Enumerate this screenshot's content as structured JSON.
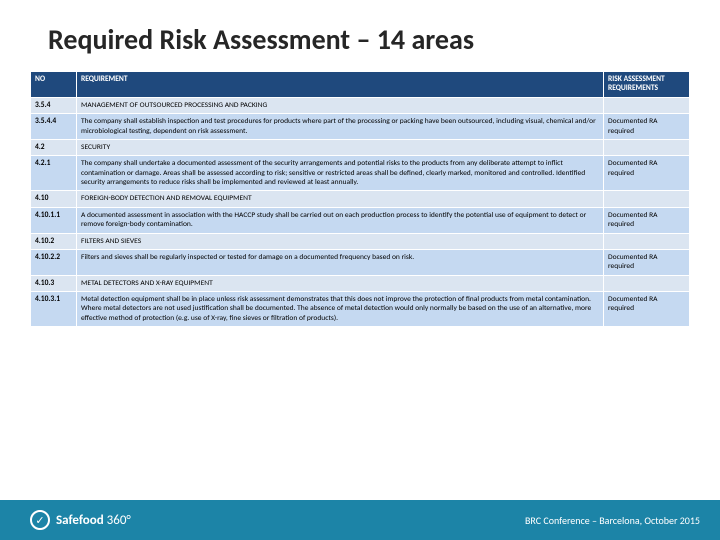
{
  "title": "Required Risk Assessment – 14 areas",
  "table": {
    "headers": {
      "no": "NO",
      "req": "REQUIREMENT",
      "risk": "RISK ASSESSMENT REQUIREMENTS"
    },
    "rows": [
      {
        "no": "3.5.4",
        "req": "MANAGEMENT OF OUTSOURCED PROCESSING AND PACKING",
        "risk": ""
      },
      {
        "no": "3.5.4.4",
        "req": "The company shall establish inspection and test procedures for products where part of the processing or packing have been outsourced, including visual, chemical and/or microbiological testing, dependent on risk assessment.",
        "risk": "Documented RA required"
      },
      {
        "no": "4.2",
        "req": "SECURITY",
        "risk": ""
      },
      {
        "no": "4.2.1",
        "req": "The company shall undertake a documented assessment of the security arrangements and potential risks to the products from any deliberate attempt to inflict contamination or damage. Areas shall be assessed according to risk; sensitive or restricted areas shall be defined, clearly marked, monitored and controlled. Identified security arrangements to reduce risks shall be implemented and reviewed at least annually.",
        "risk": "Documented RA required"
      },
      {
        "no": "4.10",
        "req": "FOREIGN-BODY DETECTION AND REMOVAL EQUIPMENT",
        "risk": ""
      },
      {
        "no": "4.10.1.1",
        "req": "A documented assessment in association with the HACCP study shall be carried out on each production process to identify the potential use of equipment to detect or remove foreign-body contamination.",
        "risk": "Documented RA required"
      },
      {
        "no": "4.10.2",
        "req": "FILTERS AND SIEVES",
        "risk": ""
      },
      {
        "no": "4.10.2.2",
        "req": "Filters and sieves shall be regularly inspected or tested for damage on a documented frequency based on risk.",
        "risk": "Documented RA required"
      },
      {
        "no": "4.10.3",
        "req": "METAL DETECTORS AND X-RAY EQUIPMENT",
        "risk": ""
      },
      {
        "no": "4.10.3.1",
        "req": "Metal detection equipment shall be in place unless risk assessment demonstrates that this does not improve the protection of final products from metal contamination. Where metal detectors are not used justification shall be documented. The absence of metal detection would only normally be based on the use of an alternative, more effective method of protection (e.g. use of X-ray, fine sieves or filtration of products).",
        "risk": "Documented RA required"
      }
    ]
  },
  "footer": {
    "logo_bold": "Safefood",
    "logo_light": " 360°",
    "conference": "BRC Conference – Barcelona,  October 2015"
  }
}
